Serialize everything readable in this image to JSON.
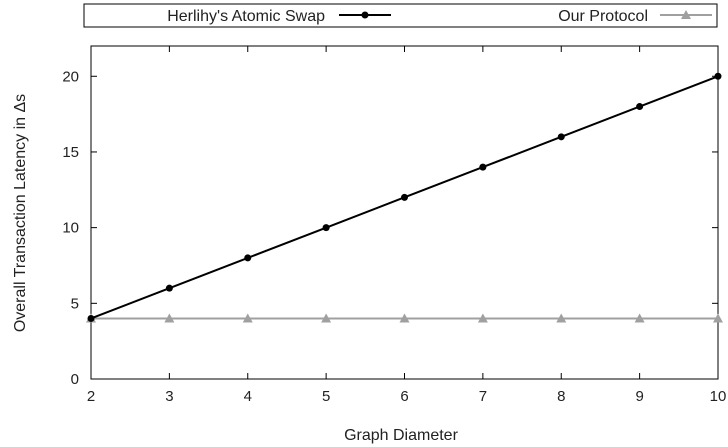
{
  "chart_data": {
    "type": "line",
    "xlabel": "Graph Diameter",
    "ylabel": "Overall Transaction Latency in Δs",
    "x": [
      2,
      3,
      4,
      5,
      6,
      7,
      8,
      9,
      10
    ],
    "xlim": [
      2,
      10
    ],
    "ylim": [
      0,
      22
    ],
    "xticks": [
      2,
      3,
      4,
      5,
      6,
      7,
      8,
      9,
      10
    ],
    "yticks": [
      0,
      5,
      10,
      15,
      20
    ],
    "grid": false,
    "legend_position": "top",
    "series": [
      {
        "name": "Herlihy's Atomic Swap",
        "values": [
          4,
          6,
          8,
          10,
          12,
          14,
          16,
          18,
          20
        ],
        "color": "#000000",
        "marker": "circle"
      },
      {
        "name": "Our Protocol",
        "values": [
          4,
          4,
          4,
          4,
          4,
          4,
          4,
          4,
          4
        ],
        "color": "#a0a0a0",
        "marker": "triangle"
      }
    ]
  }
}
